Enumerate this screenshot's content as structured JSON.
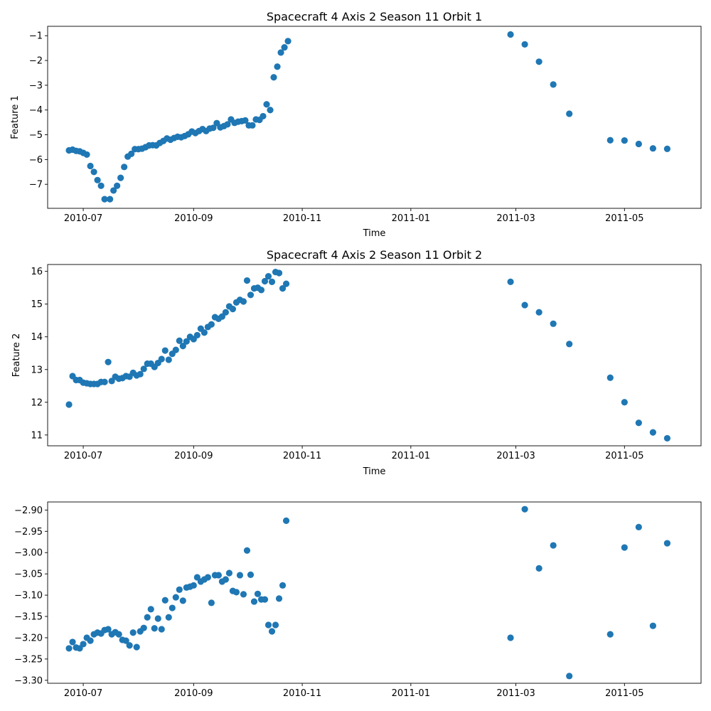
{
  "figure": {
    "marker_color": "#1f77b4",
    "background": "#ffffff",
    "x_tick_labels": [
      "2010-07",
      "2010-09",
      "2010-11",
      "2011-01",
      "2011-03",
      "2011-05"
    ]
  },
  "chart_data": [
    {
      "type": "scatter",
      "title": "Spacecraft 4 Axis 2 Season 11 Orbit 1",
      "xlabel": "Time",
      "ylabel": "Feature 1",
      "xlim": [
        "2010-06-11",
        "2011-06-13"
      ],
      "ylim": [
        -7.97,
        -0.62
      ],
      "yticks": [
        -7,
        -6,
        -5,
        -4,
        -3,
        -2,
        -1
      ],
      "ytick_labels": [
        "−7",
        "−6",
        "−5",
        "−4",
        "−3",
        "−2",
        "−1"
      ],
      "grid": false,
      "points": [
        [
          "2010-06-23",
          -5.63
        ],
        [
          "2010-06-25",
          -5.6
        ],
        [
          "2010-06-27",
          -5.65
        ],
        [
          "2010-06-29",
          -5.67
        ],
        [
          "2010-07-01",
          -5.73
        ],
        [
          "2010-07-03",
          -5.8
        ],
        [
          "2010-07-05",
          -6.26
        ],
        [
          "2010-07-07",
          -6.5
        ],
        [
          "2010-07-09",
          -6.83
        ],
        [
          "2010-07-11",
          -7.06
        ],
        [
          "2010-07-13",
          -7.6
        ],
        [
          "2010-07-16",
          -7.6
        ],
        [
          "2010-07-18",
          -7.25
        ],
        [
          "2010-07-20",
          -7.06
        ],
        [
          "2010-07-22",
          -6.74
        ],
        [
          "2010-07-24",
          -6.3
        ],
        [
          "2010-07-26",
          -5.88
        ],
        [
          "2010-07-28",
          -5.77
        ],
        [
          "2010-07-30",
          -5.58
        ],
        [
          "2010-08-01",
          -5.58
        ],
        [
          "2010-08-03",
          -5.56
        ],
        [
          "2010-08-05",
          -5.5
        ],
        [
          "2010-08-07",
          -5.43
        ],
        [
          "2010-08-09",
          -5.42
        ],
        [
          "2010-08-11",
          -5.43
        ],
        [
          "2010-08-13",
          -5.33
        ],
        [
          "2010-08-15",
          -5.25
        ],
        [
          "2010-08-17",
          -5.15
        ],
        [
          "2010-08-19",
          -5.2
        ],
        [
          "2010-08-21",
          -5.13
        ],
        [
          "2010-08-23",
          -5.08
        ],
        [
          "2010-08-25",
          -5.1
        ],
        [
          "2010-08-27",
          -5.05
        ],
        [
          "2010-08-29",
          -4.98
        ],
        [
          "2010-08-31",
          -4.87
        ],
        [
          "2010-09-02",
          -4.93
        ],
        [
          "2010-09-04",
          -4.85
        ],
        [
          "2010-09-06",
          -4.77
        ],
        [
          "2010-09-08",
          -4.85
        ],
        [
          "2010-09-10",
          -4.75
        ],
        [
          "2010-09-12",
          -4.72
        ],
        [
          "2010-09-14",
          -4.53
        ],
        [
          "2010-09-16",
          -4.7
        ],
        [
          "2010-09-18",
          -4.65
        ],
        [
          "2010-09-20",
          -4.58
        ],
        [
          "2010-09-22",
          -4.38
        ],
        [
          "2010-09-24",
          -4.52
        ],
        [
          "2010-09-26",
          -4.47
        ],
        [
          "2010-09-28",
          -4.45
        ],
        [
          "2010-09-30",
          -4.42
        ],
        [
          "2010-10-02",
          -4.62
        ],
        [
          "2010-10-04",
          -4.62
        ],
        [
          "2010-10-06",
          -4.38
        ],
        [
          "2010-10-08",
          -4.4
        ],
        [
          "2010-10-10",
          -4.25
        ],
        [
          "2010-10-12",
          -3.77
        ],
        [
          "2010-10-14",
          -4.0
        ],
        [
          "2010-10-16",
          -2.68
        ],
        [
          "2010-10-18",
          -2.25
        ],
        [
          "2010-10-20",
          -1.68
        ],
        [
          "2010-10-22",
          -1.47
        ],
        [
          "2010-10-24",
          -1.22
        ],
        [
          "2011-02-26",
          -0.95
        ],
        [
          "2011-03-06",
          -1.35
        ],
        [
          "2011-03-14",
          -2.05
        ],
        [
          "2011-03-22",
          -2.97
        ],
        [
          "2011-03-31",
          -4.15
        ],
        [
          "2011-04-23",
          -5.22
        ],
        [
          "2011-05-01",
          -5.23
        ],
        [
          "2011-05-09",
          -5.37
        ],
        [
          "2011-05-17",
          -5.55
        ],
        [
          "2011-05-25",
          -5.57
        ]
      ]
    },
    {
      "type": "scatter",
      "title": "Spacecraft 4 Axis 2 Season 11 Orbit 2",
      "xlabel": "Time",
      "ylabel": "Feature 2",
      "xlim": [
        "2010-06-11",
        "2011-06-13"
      ],
      "ylim": [
        10.67,
        16.21
      ],
      "yticks": [
        11,
        12,
        13,
        14,
        15,
        16
      ],
      "ytick_labels": [
        "11",
        "12",
        "13",
        "14",
        "15",
        "16"
      ],
      "grid": false,
      "points": [
        [
          "2010-06-23",
          11.93
        ],
        [
          "2010-06-25",
          12.8
        ],
        [
          "2010-06-27",
          12.68
        ],
        [
          "2010-06-29",
          12.68
        ],
        [
          "2010-07-01",
          12.6
        ],
        [
          "2010-07-03",
          12.58
        ],
        [
          "2010-07-05",
          12.56
        ],
        [
          "2010-07-07",
          12.56
        ],
        [
          "2010-07-09",
          12.56
        ],
        [
          "2010-07-11",
          12.62
        ],
        [
          "2010-07-13",
          12.62
        ],
        [
          "2010-07-15",
          13.23
        ],
        [
          "2010-07-17",
          12.65
        ],
        [
          "2010-07-19",
          12.78
        ],
        [
          "2010-07-21",
          12.72
        ],
        [
          "2010-07-23",
          12.74
        ],
        [
          "2010-07-25",
          12.8
        ],
        [
          "2010-07-27",
          12.78
        ],
        [
          "2010-07-29",
          12.9
        ],
        [
          "2010-07-31",
          12.82
        ],
        [
          "2010-08-02",
          12.86
        ],
        [
          "2010-08-04",
          13.02
        ],
        [
          "2010-08-06",
          13.18
        ],
        [
          "2010-08-08",
          13.18
        ],
        [
          "2010-08-10",
          13.08
        ],
        [
          "2010-08-12",
          13.2
        ],
        [
          "2010-08-14",
          13.32
        ],
        [
          "2010-08-16",
          13.58
        ],
        [
          "2010-08-18",
          13.3
        ],
        [
          "2010-08-20",
          13.48
        ],
        [
          "2010-08-22",
          13.6
        ],
        [
          "2010-08-24",
          13.88
        ],
        [
          "2010-08-26",
          13.72
        ],
        [
          "2010-08-28",
          13.86
        ],
        [
          "2010-08-30",
          14.0
        ],
        [
          "2010-09-01",
          13.93
        ],
        [
          "2010-09-03",
          14.05
        ],
        [
          "2010-09-05",
          14.25
        ],
        [
          "2010-09-07",
          14.13
        ],
        [
          "2010-09-09",
          14.3
        ],
        [
          "2010-09-11",
          14.38
        ],
        [
          "2010-09-13",
          14.6
        ],
        [
          "2010-09-15",
          14.55
        ],
        [
          "2010-09-17",
          14.62
        ],
        [
          "2010-09-19",
          14.75
        ],
        [
          "2010-09-21",
          14.93
        ],
        [
          "2010-09-23",
          14.85
        ],
        [
          "2010-09-25",
          15.05
        ],
        [
          "2010-09-27",
          15.13
        ],
        [
          "2010-09-29",
          15.08
        ],
        [
          "2010-10-01",
          15.72
        ],
        [
          "2010-10-03",
          15.28
        ],
        [
          "2010-10-05",
          15.48
        ],
        [
          "2010-10-07",
          15.5
        ],
        [
          "2010-10-09",
          15.43
        ],
        [
          "2010-10-11",
          15.7
        ],
        [
          "2010-10-13",
          15.85
        ],
        [
          "2010-10-15",
          15.68
        ],
        [
          "2010-10-17",
          15.98
        ],
        [
          "2010-10-19",
          15.95
        ],
        [
          "2010-10-21",
          15.48
        ],
        [
          "2010-10-23",
          15.62
        ],
        [
          "2011-02-26",
          15.68
        ],
        [
          "2011-03-06",
          14.97
        ],
        [
          "2011-03-14",
          14.75
        ],
        [
          "2011-03-22",
          14.4
        ],
        [
          "2011-03-31",
          13.78
        ],
        [
          "2011-04-23",
          12.75
        ],
        [
          "2011-05-01",
          12.0
        ],
        [
          "2011-05-09",
          11.37
        ],
        [
          "2011-05-17",
          11.08
        ],
        [
          "2011-05-25",
          10.9
        ]
      ]
    },
    {
      "type": "scatter",
      "title": "",
      "xlabel": "",
      "ylabel": "",
      "xlim": [
        "2010-06-11",
        "2011-06-13"
      ],
      "ylim": [
        -3.307,
        -2.881
      ],
      "yticks": [
        -3.3,
        -3.25,
        -3.2,
        -3.15,
        -3.1,
        -3.05,
        -3.0,
        -2.95,
        -2.9
      ],
      "ytick_labels": [
        "−3.30",
        "−3.25",
        "−3.20",
        "−3.15",
        "−3.10",
        "−3.05",
        "−3.00",
        "−2.95",
        "−2.90"
      ],
      "grid": false,
      "points": [
        [
          "2010-06-23",
          -3.225
        ],
        [
          "2010-06-25",
          -3.21
        ],
        [
          "2010-06-27",
          -3.223
        ],
        [
          "2010-06-29",
          -3.225
        ],
        [
          "2010-07-01",
          -3.215
        ],
        [
          "2010-07-03",
          -3.2
        ],
        [
          "2010-07-05",
          -3.207
        ],
        [
          "2010-07-07",
          -3.192
        ],
        [
          "2010-07-09",
          -3.188
        ],
        [
          "2010-07-11",
          -3.19
        ],
        [
          "2010-07-13",
          -3.182
        ],
        [
          "2010-07-15",
          -3.18
        ],
        [
          "2010-07-17",
          -3.192
        ],
        [
          "2010-07-19",
          -3.187
        ],
        [
          "2010-07-21",
          -3.192
        ],
        [
          "2010-07-23",
          -3.205
        ],
        [
          "2010-07-25",
          -3.207
        ],
        [
          "2010-07-27",
          -3.218
        ],
        [
          "2010-07-29",
          -3.188
        ],
        [
          "2010-07-31",
          -3.222
        ],
        [
          "2010-08-02",
          -3.185
        ],
        [
          "2010-08-04",
          -3.177
        ],
        [
          "2010-08-06",
          -3.152
        ],
        [
          "2010-08-08",
          -3.133
        ],
        [
          "2010-08-10",
          -3.178
        ],
        [
          "2010-08-12",
          -3.155
        ],
        [
          "2010-08-14",
          -3.18
        ],
        [
          "2010-08-16",
          -3.112
        ],
        [
          "2010-08-18",
          -3.152
        ],
        [
          "2010-08-20",
          -3.13
        ],
        [
          "2010-08-22",
          -3.105
        ],
        [
          "2010-08-24",
          -3.087
        ],
        [
          "2010-08-26",
          -3.113
        ],
        [
          "2010-08-28",
          -3.082
        ],
        [
          "2010-08-30",
          -3.08
        ],
        [
          "2010-09-01",
          -3.077
        ],
        [
          "2010-09-03",
          -3.058
        ],
        [
          "2010-09-05",
          -3.068
        ],
        [
          "2010-09-07",
          -3.063
        ],
        [
          "2010-09-09",
          -3.058
        ],
        [
          "2010-09-11",
          -3.118
        ],
        [
          "2010-09-13",
          -3.053
        ],
        [
          "2010-09-15",
          -3.053
        ],
        [
          "2010-09-17",
          -3.068
        ],
        [
          "2010-09-19",
          -3.063
        ],
        [
          "2010-09-21",
          -3.048
        ],
        [
          "2010-09-23",
          -3.09
        ],
        [
          "2010-09-25",
          -3.093
        ],
        [
          "2010-09-27",
          -3.053
        ],
        [
          "2010-09-29",
          -3.098
        ],
        [
          "2010-10-01",
          -2.995
        ],
        [
          "2010-10-03",
          -3.052
        ],
        [
          "2010-10-05",
          -3.115
        ],
        [
          "2010-10-07",
          -3.097
        ],
        [
          "2010-10-09",
          -3.11
        ],
        [
          "2010-10-11",
          -3.11
        ],
        [
          "2010-10-13",
          -3.17
        ],
        [
          "2010-10-15",
          -3.185
        ],
        [
          "2010-10-17",
          -3.17
        ],
        [
          "2010-10-19",
          -3.108
        ],
        [
          "2010-10-21",
          -3.077
        ],
        [
          "2010-10-23",
          -2.925
        ],
        [
          "2011-02-26",
          -3.2
        ],
        [
          "2011-03-06",
          -2.898
        ],
        [
          "2011-03-14",
          -3.037
        ],
        [
          "2011-03-22",
          -2.983
        ],
        [
          "2011-03-31",
          -3.29
        ],
        [
          "2011-04-23",
          -3.192
        ],
        [
          "2011-05-01",
          -2.988
        ],
        [
          "2011-05-09",
          -2.94
        ],
        [
          "2011-05-17",
          -3.172
        ],
        [
          "2011-05-25",
          -2.978
        ]
      ]
    }
  ]
}
